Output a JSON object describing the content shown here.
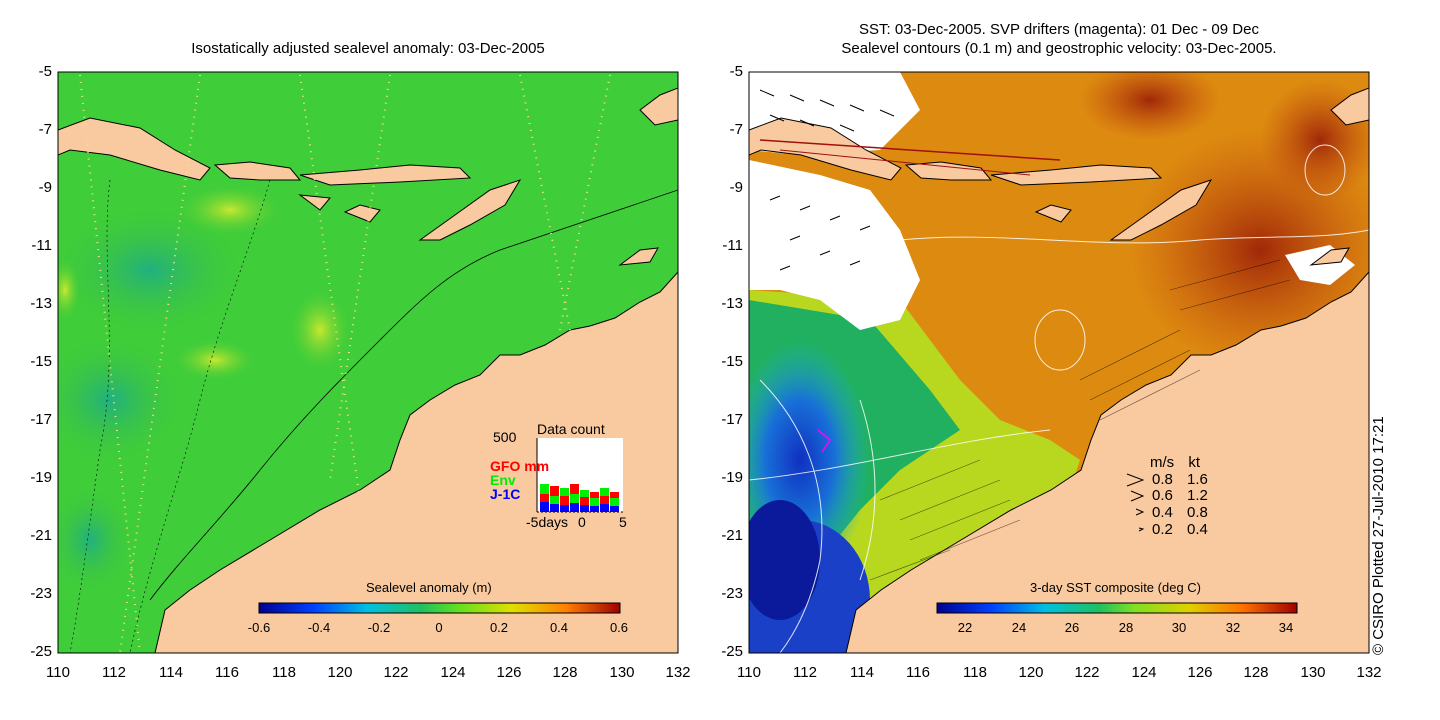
{
  "left_panel": {
    "title": "Isostatically adjusted sealevel anomaly: 03-Dec-2005",
    "y_ticks": [
      "-5",
      "-7",
      "-9",
      "-11",
      "-13",
      "-15",
      "-17",
      "-19",
      "-21",
      "-23",
      "-25"
    ],
    "x_ticks": [
      "110",
      "112",
      "114",
      "116",
      "118",
      "120",
      "122",
      "124",
      "126",
      "128",
      "130",
      "132"
    ],
    "colorbar": {
      "title": "Sealevel anomaly (m)",
      "ticks": [
        "-0.6",
        "-0.4",
        "-0.2",
        "0",
        "0.2",
        "0.4",
        "0.6"
      ],
      "range": [
        -0.6,
        0.6
      ]
    },
    "data_count": {
      "title": "Data count",
      "max_label": "500",
      "series": [
        {
          "name": "GFO",
          "color": "#ff0000"
        },
        {
          "name": "Env",
          "color": "#00ee00"
        },
        {
          "name": "J-1C",
          "color": "#0000ff"
        }
      ],
      "unit_label": "mm",
      "x_labels": [
        "-5days",
        "0",
        "5"
      ]
    }
  },
  "right_panel": {
    "title_line1": "SST: 03-Dec-2005. SVP drifters (magenta): 01 Dec - 09 Dec",
    "title_line2": "Sealevel contours (0.1 m) and geostrophic velocity: 03-Dec-2005.",
    "y_ticks": [
      "-5",
      "-7",
      "-9",
      "-11",
      "-13",
      "-15",
      "-17",
      "-19",
      "-21",
      "-23",
      "-25"
    ],
    "x_ticks": [
      "110",
      "112",
      "114",
      "116",
      "118",
      "120",
      "122",
      "124",
      "126",
      "128",
      "130",
      "132"
    ],
    "colorbar": {
      "title": "3-day SST composite (deg C)",
      "ticks": [
        "22",
        "24",
        "26",
        "28",
        "30",
        "32",
        "34"
      ],
      "range": [
        21,
        34.5
      ]
    },
    "velocity_legend": {
      "header_ms": "m/s",
      "header_kt": "kt",
      "rows": [
        {
          "ms": "0.8",
          "kt": "1.6"
        },
        {
          "ms": "0.6",
          "kt": "1.2"
        },
        {
          "ms": "0.4",
          "kt": "0.8"
        },
        {
          "ms": "0.2",
          "kt": "0.4"
        }
      ]
    }
  },
  "credit": "© CSIRO Plotted 27-Jul-2010 17:21",
  "colors": {
    "land": "#f9c99f",
    "sla_green": "#3fcd3a",
    "sst_orange": "#dd8a10",
    "sst_red": "#b83a0a",
    "sst_blue": "#1a40c8"
  }
}
